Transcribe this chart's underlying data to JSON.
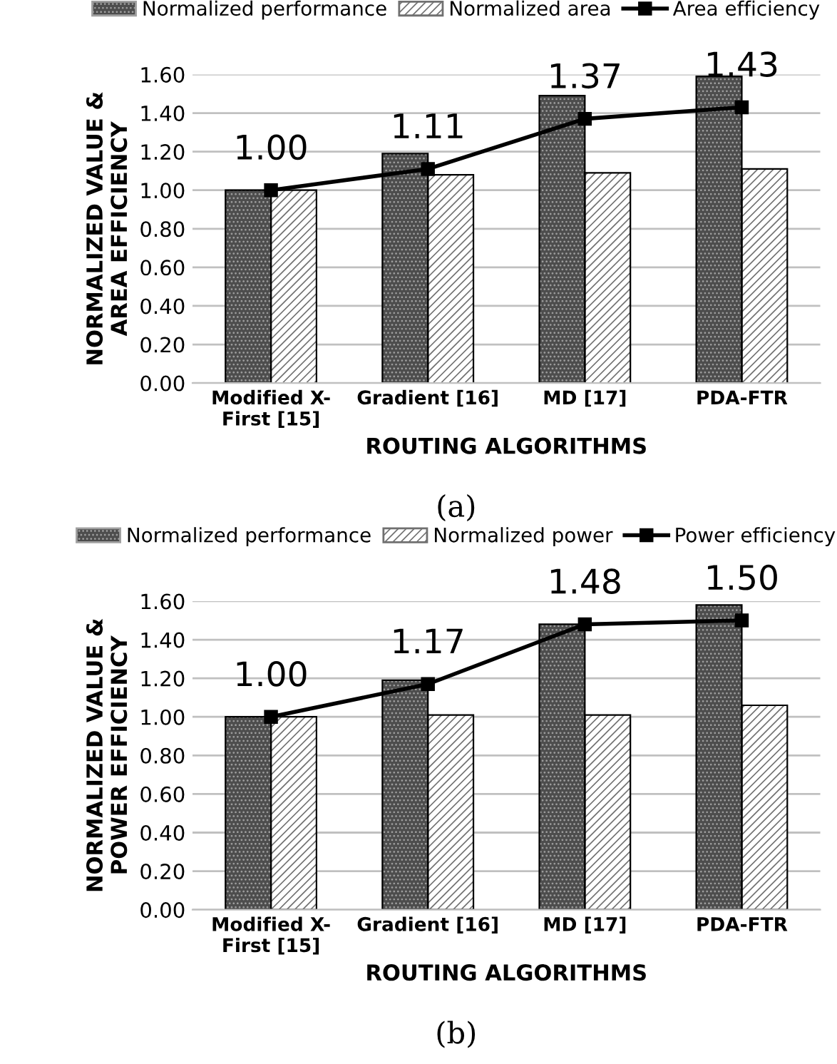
{
  "chart_data": [
    {
      "type": "bar",
      "xlabel": "ROUTING ALGORITHMS",
      "ylabel": "NORMALIZED VALUE &\nAREA EFFICIENCY",
      "categories": [
        "Modified X-\nFirst [15]",
        "Gradient [16]",
        "MD [17]",
        "PDA-FTR"
      ],
      "series": [
        {
          "name": "Normalized performance",
          "color": "#4d4d4d",
          "values": [
            1.0,
            1.19,
            1.49,
            1.59
          ]
        },
        {
          "name": "Normalized area",
          "color": "#ffffff",
          "values": [
            1.0,
            1.08,
            1.09,
            1.11
          ]
        },
        {
          "name": "Area efficiency",
          "type": "line",
          "color": "#000000",
          "marker": "square",
          "values": [
            1.0,
            1.11,
            1.37,
            1.43
          ],
          "value_labels": [
            "1.00",
            "1.11",
            "1.37",
            "1.43"
          ]
        }
      ],
      "ylim": [
        0,
        1.6
      ],
      "yticks": [
        {
          "value": 0,
          "label": "0.00"
        },
        {
          "value": 0.2,
          "label": "0.20"
        },
        {
          "value": 0.4,
          "label": "0.40"
        },
        {
          "value": 0.6,
          "label": "0.60"
        },
        {
          "value": 0.8,
          "label": "0.80"
        },
        {
          "value": 1.0,
          "label": "1.00"
        },
        {
          "value": 1.2,
          "label": "1.20"
        },
        {
          "value": 1.4,
          "label": "1.40"
        },
        {
          "value": 1.6,
          "label": "1.60"
        }
      ],
      "grid": "y",
      "legend": "top",
      "annotations": [
        "(a)"
      ]
    },
    {
      "type": "bar",
      "xlabel": "ROUTING ALGORITHMS",
      "ylabel": "NORMALIZED VALUE &\nPOWER EFFICIENCY",
      "categories": [
        "Modified X-\nFirst [15]",
        "Gradient [16]",
        "MD [17]",
        "PDA-FTR"
      ],
      "series": [
        {
          "name": "Normalized performance",
          "color": "#4d4d4d",
          "values": [
            1.0,
            1.19,
            1.48,
            1.58
          ]
        },
        {
          "name": "Normalized power",
          "color": "#ffffff",
          "values": [
            1.0,
            1.01,
            1.01,
            1.06
          ]
        },
        {
          "name": "Power efficiency",
          "type": "line",
          "color": "#000000",
          "marker": "square",
          "values": [
            1.0,
            1.17,
            1.48,
            1.5
          ],
          "value_labels": [
            "1.00",
            "1.17",
            "1.48",
            "1.50"
          ]
        }
      ],
      "ylim": [
        0,
        1.6
      ],
      "yticks": [
        {
          "value": 0,
          "label": "0.00"
        },
        {
          "value": 0.2,
          "label": "0.20"
        },
        {
          "value": 0.4,
          "label": "0.40"
        },
        {
          "value": 0.6,
          "label": "0.60"
        },
        {
          "value": 0.8,
          "label": "0.80"
        },
        {
          "value": 1.0,
          "label": "1.00"
        },
        {
          "value": 1.2,
          "label": "1.20"
        },
        {
          "value": 1.4,
          "label": "1.40"
        },
        {
          "value": 1.6,
          "label": "1.60"
        }
      ],
      "grid": "y",
      "legend": "top",
      "annotations": [
        "(b)"
      ]
    }
  ]
}
